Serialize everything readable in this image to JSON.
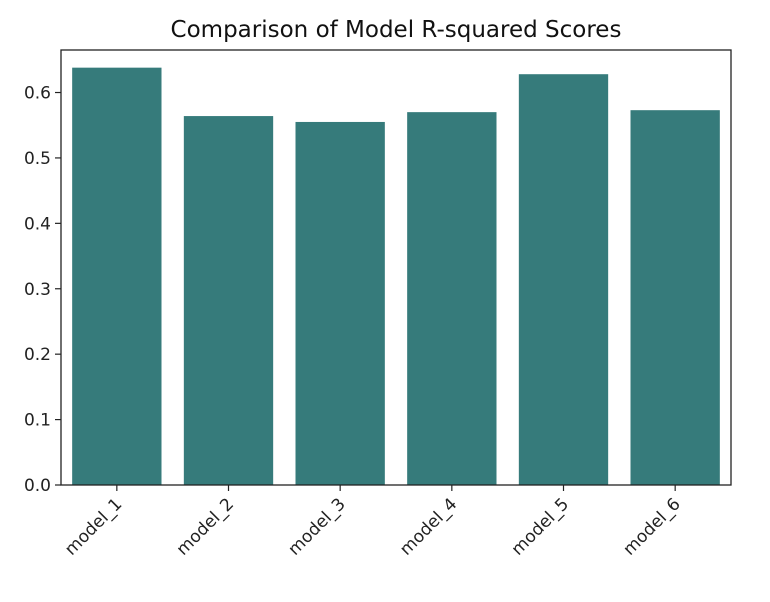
{
  "chart_data": {
    "type": "bar",
    "title": "Comparison of Model R-squared Scores",
    "xlabel": "",
    "ylabel": "",
    "categories": [
      "model_1",
      "model_2",
      "model_3",
      "model_4",
      "model_5",
      "model_6"
    ],
    "values": [
      0.638,
      0.564,
      0.555,
      0.57,
      0.628,
      0.573
    ],
    "ylim": [
      0,
      0.665
    ],
    "yticks": [
      "0.0",
      "0.1",
      "0.2",
      "0.3",
      "0.4",
      "0.5",
      "0.6"
    ],
    "bar_color": "#367b7b",
    "grid": false,
    "legend": "none"
  }
}
